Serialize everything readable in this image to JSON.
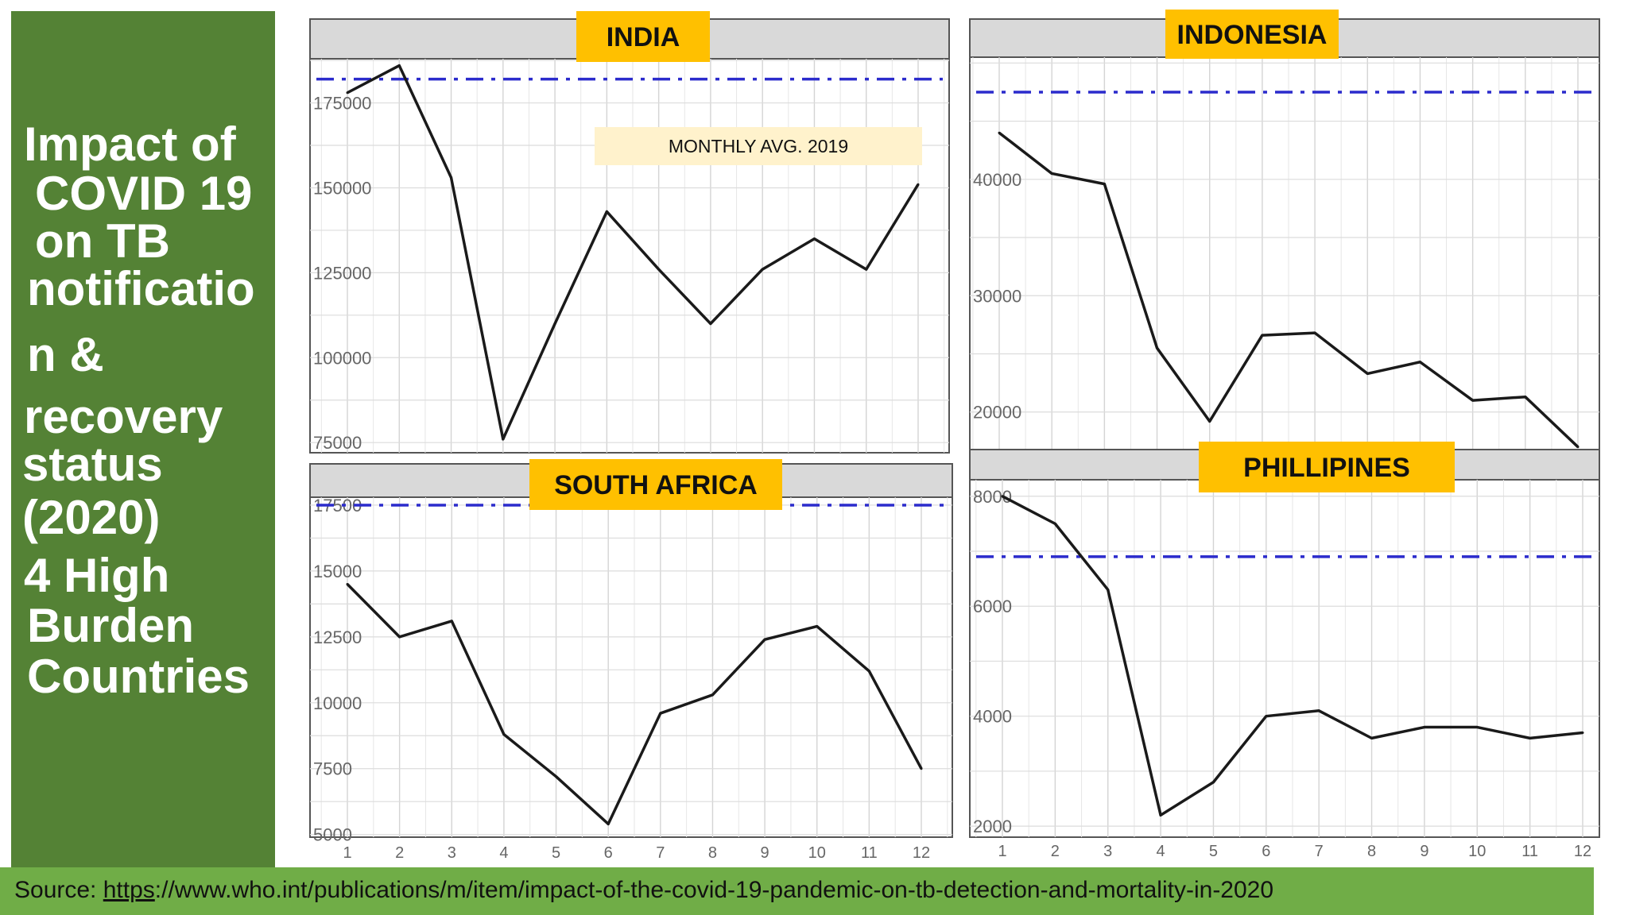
{
  "sidebar": {
    "lines": [
      "Impact of",
      " COVID 19",
      " on TB",
      "notificatio",
      "n &",
      "recovery",
      "status",
      "(2020)",
      "4 High",
      "Burden",
      "Countries"
    ],
    "bg_color": "#548235"
  },
  "footer": {
    "prefix": "Source: ",
    "url_underlined": "https",
    "url_rest": "://www.who.int/publications/m/item/impact-of-the-covid-19-pandemic-on-tb-detection-and-mortality-in-2020",
    "bg_color": "#70ad47"
  },
  "colors": {
    "label_bg": "#ffc000",
    "strip_bg": "#d9d9d9",
    "line": "#1a1a1a",
    "avg_line": "#2b2bcc",
    "annotation_bg": "#fff2cc"
  },
  "chart_data": [
    {
      "type": "line",
      "title": "INDIA",
      "annotation": "MONTHLY AVG. 2019",
      "x": [
        1,
        2,
        3,
        4,
        5,
        6,
        7,
        8,
        9,
        10,
        11,
        12
      ],
      "x_ticks": [],
      "ylim": [
        72000,
        188000
      ],
      "y_ticks": [
        75000,
        100000,
        125000,
        150000,
        175000
      ],
      "y_tick_labels": [
        "75000",
        "100000",
        "125000",
        "150000",
        "175000"
      ],
      "values": [
        178000,
        186000,
        153000,
        76000,
        110000,
        143000,
        126000,
        110000,
        126000,
        135000,
        126000,
        151000
      ],
      "reference_line": 182000,
      "grid": true
    },
    {
      "type": "line",
      "title": "INDONESIA",
      "x": [
        1,
        2,
        3,
        4,
        5,
        6,
        7,
        8,
        9,
        10,
        11,
        12
      ],
      "x_ticks": [],
      "ylim": [
        16500,
        50500
      ],
      "y_ticks": [
        20000,
        30000,
        40000
      ],
      "y_tick_labels": [
        "20000",
        "30000",
        "40000"
      ],
      "values": [
        44000,
        40500,
        39600,
        25500,
        19200,
        26600,
        26800,
        23300,
        24300,
        21000,
        21300,
        17000
      ],
      "reference_line": 47500,
      "grid": true
    },
    {
      "type": "line",
      "title": "SOUTH AFRICA",
      "x": [
        1,
        2,
        3,
        4,
        5,
        6,
        7,
        8,
        9,
        10,
        11,
        12
      ],
      "x_ticks": [
        "1",
        "2",
        "3",
        "4",
        "5",
        "6",
        "7",
        "8",
        "9",
        "10",
        "11",
        "12"
      ],
      "ylim": [
        4900,
        17800
      ],
      "y_ticks": [
        5000,
        7500,
        10000,
        12500,
        15000,
        17500
      ],
      "y_tick_labels": [
        "5000",
        "7500",
        "10000",
        "12500",
        "15000",
        "17500"
      ],
      "values": [
        14500,
        12500,
        13100,
        8800,
        7200,
        5400,
        9600,
        10300,
        12400,
        12900,
        11200,
        7500
      ],
      "reference_line": 17500,
      "grid": true
    },
    {
      "type": "line",
      "title": "PHILLIPINES",
      "x": [
        1,
        2,
        3,
        4,
        5,
        6,
        7,
        8,
        9,
        10,
        11,
        12
      ],
      "x_ticks": [
        "1",
        "2",
        "3",
        "4",
        "5",
        "6",
        "7",
        "8",
        "9",
        "10",
        "11",
        "12"
      ],
      "ylim": [
        1800,
        8300
      ],
      "y_ticks": [
        2000,
        4000,
        6000,
        8000
      ],
      "y_tick_labels": [
        "2000",
        "4000",
        "6000",
        "8000"
      ],
      "values": [
        8000,
        7500,
        6300,
        2200,
        2800,
        4000,
        4100,
        3600,
        3800,
        3800,
        3600,
        3700
      ],
      "reference_line": 6900,
      "grid": true
    }
  ]
}
